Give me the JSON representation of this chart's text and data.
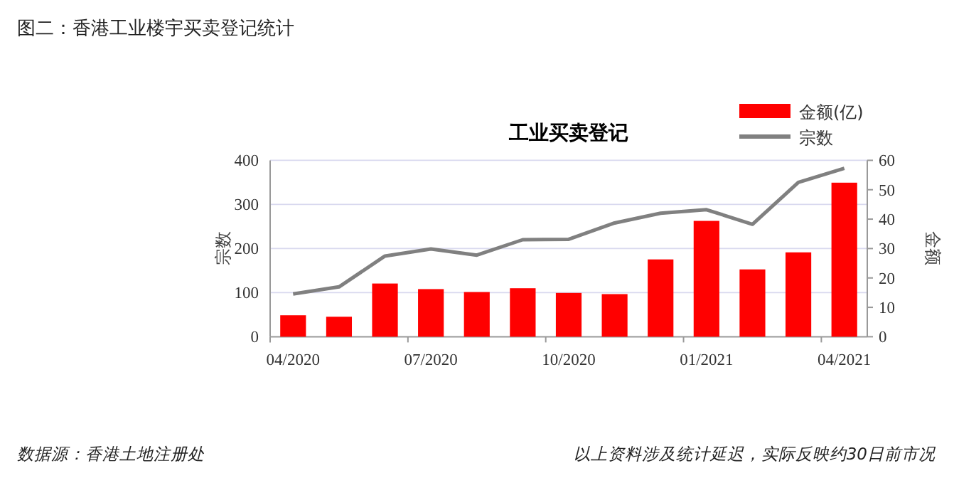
{
  "chart_data": {
    "type": "bar",
    "title": "图二：香港工业楼宇买卖登记统计",
    "subtitle": "工业买卖登记",
    "ylabel": "宗数",
    "y2label": "金额",
    "categories": [
      "04/2020",
      null,
      null,
      "07/2020",
      null,
      null,
      "10/2020",
      null,
      null,
      "01/2021",
      null,
      null,
      "04/2021"
    ],
    "series": [
      {
        "name": "金额(亿)",
        "axis": "y2",
        "color": "#ff0000",
        "values": [
          7.3,
          6.8,
          18.1,
          16.2,
          15.2,
          16.5,
          14.9,
          14.5,
          26.3,
          39.4,
          22.9,
          28.7,
          52.4
        ]
      },
      {
        "name": "宗数",
        "type": "line",
        "color": "#808080",
        "values": [
          97,
          113,
          183,
          199,
          185,
          220,
          221,
          258,
          280,
          288,
          255,
          350,
          382
        ]
      }
    ],
    "ylim": [
      0,
      400
    ],
    "yticks": [
      0,
      100,
      200,
      300,
      400
    ],
    "y2lim": [
      0,
      60
    ],
    "y2ticks": [
      0,
      10,
      20,
      30,
      40,
      50,
      60
    ],
    "grid": "y",
    "legend": "top right",
    "annotations": [
      "数据源：香港土地注册处",
      "以上资料涉及统计延迟，实际反映约30日前市况"
    ]
  }
}
